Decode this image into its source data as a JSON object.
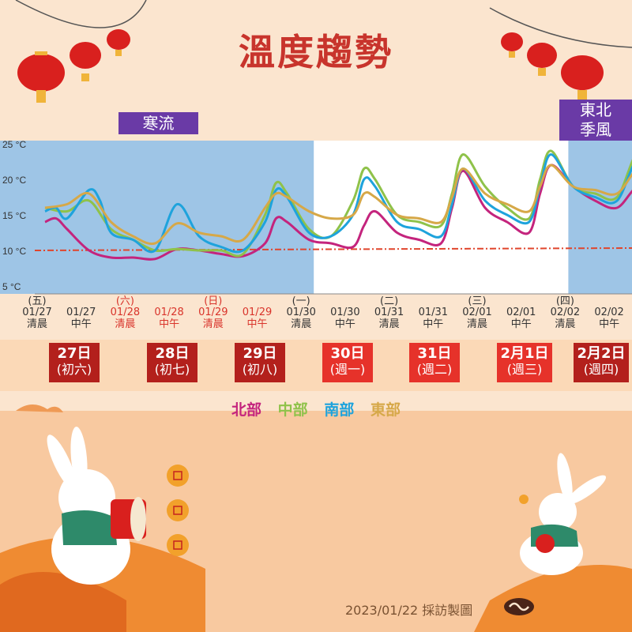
{
  "title": "溫度趨勢",
  "badges": {
    "cold_surge": "寒流",
    "monsoon_line1": "東北",
    "monsoon_line2": "季風"
  },
  "legend": [
    "北部",
    "中部",
    "南部",
    "東部"
  ],
  "days": [
    {
      "date": "27日",
      "lunar": "(初六)",
      "color": "#b3201c"
    },
    {
      "date": "28日",
      "lunar": "(初七)",
      "color": "#b3201c"
    },
    {
      "date": "29日",
      "lunar": "(初八)",
      "color": "#b3201c"
    },
    {
      "date": "30日",
      "lunar": "(週一)",
      "color": "#e6322a"
    },
    {
      "date": "31日",
      "lunar": "(週二)",
      "color": "#e6322a"
    },
    {
      "date": "2月1日",
      "lunar": "(週三)",
      "color": "#e6322a"
    },
    {
      "date": "2月2日",
      "lunar": "(週四)",
      "color": "#b3201c"
    }
  ],
  "footer": "2023/01/22 採訪製圖",
  "colors": {
    "north": "#c4247d",
    "central": "#8fc24a",
    "south": "#1ea3dc",
    "east": "#d6a848",
    "ref_line": "#e0452c",
    "shade": "#9ec5e6",
    "title": "#c8342c",
    "badge": "#6a3aa6"
  },
  "chart_data": {
    "type": "line",
    "title": "溫度趨勢",
    "ylim": [
      5,
      25
    ],
    "yticks": [
      "25 °C",
      "20 °C",
      "15 °C",
      "10 °C",
      "5 °C"
    ],
    "ytick_values": [
      25,
      20,
      15,
      10,
      5
    ],
    "x_ticks": [
      {
        "wd": "(五)",
        "date": "01/27",
        "time": "清晨",
        "red": false
      },
      {
        "wd": "",
        "date": "01/27",
        "time": "中午",
        "red": false
      },
      {
        "wd": "(六)",
        "date": "01/28",
        "time": "清晨",
        "red": true
      },
      {
        "wd": "",
        "date": "01/28",
        "time": "中午",
        "red": true
      },
      {
        "wd": "(日)",
        "date": "01/29",
        "time": "清晨",
        "red": true
      },
      {
        "wd": "",
        "date": "01/29",
        "time": "中午",
        "red": true
      },
      {
        "wd": "(一)",
        "date": "01/30",
        "time": "清晨",
        "red": false
      },
      {
        "wd": "",
        "date": "01/30",
        "time": "中午",
        "red": false
      },
      {
        "wd": "(二)",
        "date": "01/31",
        "time": "清晨",
        "red": false
      },
      {
        "wd": "",
        "date": "01/31",
        "time": "中午",
        "red": false
      },
      {
        "wd": "(三)",
        "date": "02/01",
        "time": "清晨",
        "red": false
      },
      {
        "wd": "",
        "date": "02/01",
        "time": "中午",
        "red": false
      },
      {
        "wd": "(四)",
        "date": "02/02",
        "time": "清晨",
        "red": false
      },
      {
        "wd": "",
        "date": "02/02",
        "time": "中午",
        "red": false
      }
    ],
    "reference_line": 10,
    "shaded_ranges": [
      {
        "label": "寒流",
        "from": 0,
        "to": 6
      },
      {
        "label": "東北季風",
        "from": 12,
        "to": 14
      }
    ],
    "series": [
      {
        "name": "北部",
        "key": "north",
        "points": [
          [
            0,
            14
          ],
          [
            0.25,
            14.5
          ],
          [
            0.5,
            13
          ],
          [
            1,
            10
          ],
          [
            1.5,
            9
          ],
          [
            2,
            9
          ],
          [
            2.5,
            8.8
          ],
          [
            3,
            10.2
          ],
          [
            3.5,
            10
          ],
          [
            4,
            9.5
          ],
          [
            4.5,
            9.2
          ],
          [
            5,
            11
          ],
          [
            5.25,
            14.5
          ],
          [
            5.5,
            14
          ],
          [
            6,
            11.5
          ],
          [
            6.5,
            11
          ],
          [
            7,
            10.5
          ],
          [
            7.25,
            13.5
          ],
          [
            7.5,
            15.5
          ],
          [
            8,
            12.5
          ],
          [
            8.5,
            11.5
          ],
          [
            9,
            11
          ],
          [
            9.25,
            16
          ],
          [
            9.5,
            21.2
          ],
          [
            10,
            16
          ],
          [
            10.5,
            14
          ],
          [
            11,
            12.5
          ],
          [
            11.25,
            18
          ],
          [
            11.5,
            22
          ],
          [
            12,
            19
          ],
          [
            12.5,
            17
          ],
          [
            13,
            16
          ],
          [
            13.5,
            19
          ],
          [
            14,
            16.5
          ]
        ]
      },
      {
        "name": "中部",
        "key": "central",
        "points": [
          [
            0,
            16
          ],
          [
            0.5,
            15.5
          ],
          [
            1,
            17
          ],
          [
            1.5,
            13
          ],
          [
            2,
            11.5
          ],
          [
            2.5,
            10
          ],
          [
            3,
            10.2
          ],
          [
            3.5,
            10
          ],
          [
            4,
            10
          ],
          [
            4.5,
            9.5
          ],
          [
            5,
            15
          ],
          [
            5.25,
            19.5
          ],
          [
            5.5,
            18
          ],
          [
            6,
            13
          ],
          [
            6.5,
            12
          ],
          [
            7,
            17
          ],
          [
            7.25,
            21.5
          ],
          [
            7.5,
            20
          ],
          [
            8,
            15
          ],
          [
            8.5,
            14
          ],
          [
            9,
            13.5
          ],
          [
            9.25,
            18
          ],
          [
            9.5,
            23.5
          ],
          [
            10,
            19
          ],
          [
            10.5,
            16
          ],
          [
            11,
            14.5
          ],
          [
            11.25,
            20
          ],
          [
            11.5,
            24
          ],
          [
            12,
            19
          ],
          [
            12.5,
            18
          ],
          [
            13,
            17.5
          ],
          [
            13.5,
            24
          ],
          [
            14,
            20
          ]
        ]
      },
      {
        "name": "南部",
        "key": "south",
        "points": [
          [
            0,
            15.5
          ],
          [
            0.25,
            16
          ],
          [
            0.5,
            14.5
          ],
          [
            1,
            18.5
          ],
          [
            1.25,
            17
          ],
          [
            1.5,
            12.5
          ],
          [
            2,
            11.5
          ],
          [
            2.5,
            10
          ],
          [
            3,
            16.5
          ],
          [
            3.5,
            12
          ],
          [
            4,
            10.5
          ],
          [
            4.5,
            10
          ],
          [
            5,
            14
          ],
          [
            5.25,
            18.5
          ],
          [
            5.5,
            17.5
          ],
          [
            6,
            12.5
          ],
          [
            6.5,
            12
          ],
          [
            7,
            15
          ],
          [
            7.25,
            20
          ],
          [
            7.5,
            19
          ],
          [
            8,
            14
          ],
          [
            8.5,
            13
          ],
          [
            9,
            12
          ],
          [
            9.25,
            16.5
          ],
          [
            9.5,
            21.5
          ],
          [
            10,
            17
          ],
          [
            10.5,
            15
          ],
          [
            11,
            14
          ],
          [
            11.25,
            19
          ],
          [
            11.5,
            23.5
          ],
          [
            12,
            19
          ],
          [
            12.5,
            17.5
          ],
          [
            13,
            17
          ],
          [
            13.5,
            23
          ],
          [
            14,
            19
          ]
        ]
      },
      {
        "name": "東部",
        "key": "east",
        "points": [
          [
            0,
            16
          ],
          [
            0.5,
            16.5
          ],
          [
            1,
            18
          ],
          [
            1.5,
            14
          ],
          [
            2,
            12
          ],
          [
            2.5,
            11
          ],
          [
            3,
            13.8
          ],
          [
            3.5,
            12.5
          ],
          [
            4,
            12
          ],
          [
            4.5,
            11.5
          ],
          [
            5,
            16
          ],
          [
            5.25,
            18
          ],
          [
            5.5,
            17.5
          ],
          [
            6,
            15.5
          ],
          [
            6.5,
            14.5
          ],
          [
            7,
            15
          ],
          [
            7.25,
            18
          ],
          [
            7.5,
            17.5
          ],
          [
            8,
            15
          ],
          [
            8.5,
            14.5
          ],
          [
            9,
            14
          ],
          [
            9.25,
            17.5
          ],
          [
            9.5,
            21.5
          ],
          [
            10,
            18
          ],
          [
            10.5,
            16.5
          ],
          [
            11,
            15.5
          ],
          [
            11.25,
            19
          ],
          [
            11.5,
            22
          ],
          [
            12,
            19
          ],
          [
            12.5,
            18.5
          ],
          [
            13,
            18
          ],
          [
            13.5,
            21.5
          ],
          [
            14,
            19.5
          ]
        ]
      }
    ]
  }
}
